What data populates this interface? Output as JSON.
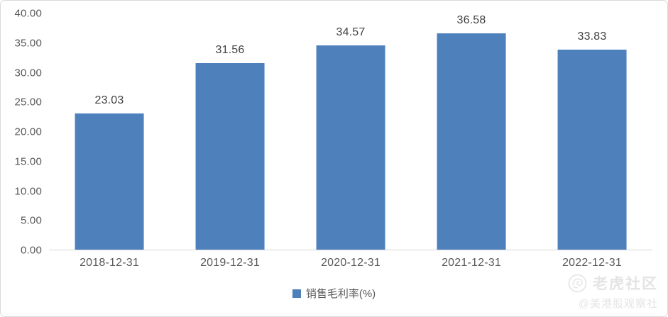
{
  "chart_data": {
    "type": "bar",
    "categories": [
      "2018-12-31",
      "2019-12-31",
      "2020-12-31",
      "2021-12-31",
      "2022-12-31"
    ],
    "series": [
      {
        "name": "销售毛利率(%)",
        "values": [
          23.03,
          31.56,
          34.57,
          36.58,
          33.83
        ]
      }
    ],
    "value_labels": [
      "23.03",
      "31.56",
      "34.57",
      "36.58",
      "33.83"
    ],
    "title": "",
    "xlabel": "",
    "ylabel": "",
    "ylim": [
      0,
      40
    ],
    "ytick_labels": [
      "0.00",
      "5.00",
      "10.00",
      "15.00",
      "20.00",
      "25.00",
      "30.00",
      "35.00",
      "40.00"
    ],
    "grid": false,
    "legend_position": "bottom",
    "bar_color": "#4e80bc"
  },
  "legend": {
    "label": "销售毛利率(%)",
    "swatch_color": "#4e80bc"
  },
  "watermark": {
    "logo": "tiger-logo",
    "brand": "老虎社区",
    "handle": "@美港股观察社",
    "color": "#e4e4e6"
  },
  "colors": {
    "bar": "#4e80bc",
    "axis_line": "#d6d6d6",
    "frame_border": "#d9d9d9",
    "tick_text": "#595959",
    "value_text": "#404040",
    "background": "#ffffff"
  }
}
